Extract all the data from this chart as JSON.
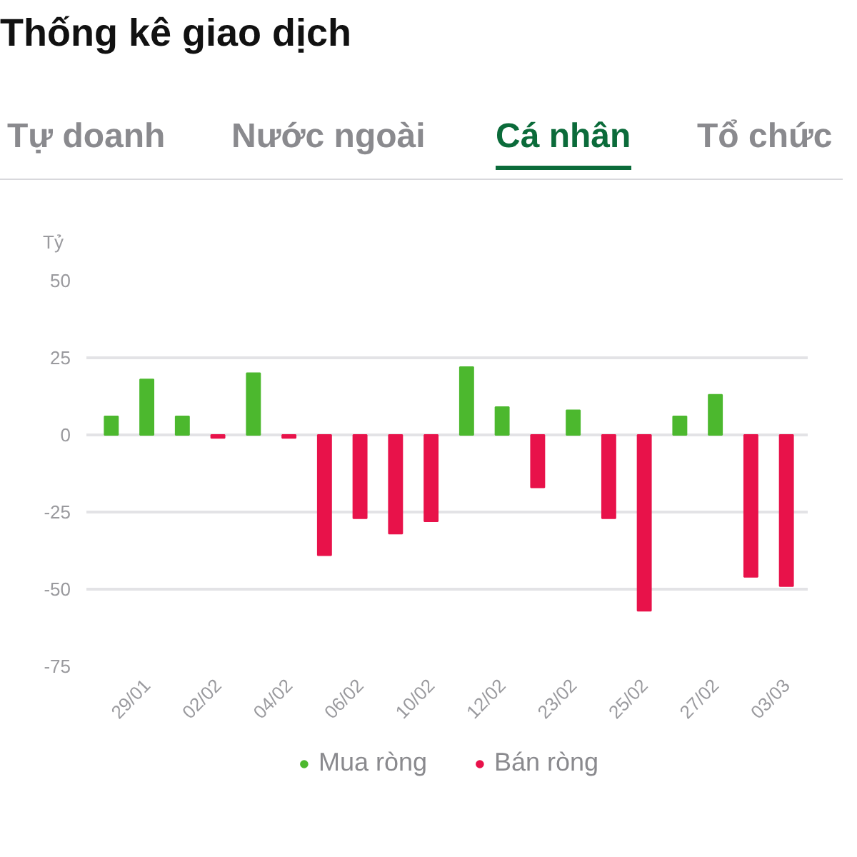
{
  "chart_data": {
    "type": "bar",
    "title": "Thống kê giao dịch",
    "annotations": [
      "Tự doanh",
      "Nước ngoài",
      "Cá nhân",
      "Tổ chức"
    ],
    "ylabel": "Tỷ",
    "categories": [
      null,
      "29/01",
      null,
      "02/02",
      null,
      "04/02",
      null,
      "06/02",
      null,
      "10/02",
      null,
      "12/02",
      null,
      "23/02",
      null,
      "25/02",
      null,
      "27/02",
      null,
      "03/03"
    ],
    "series": [
      {
        "name": "Mua ròng",
        "color": "#4cb82e",
        "values": [
          6,
          18,
          6,
          null,
          20,
          null,
          null,
          null,
          null,
          null,
          22,
          9,
          null,
          8,
          null,
          null,
          6,
          13,
          null,
          null
        ]
      },
      {
        "name": "Bán ròng",
        "color": "#e8124a",
        "values": [
          null,
          null,
          null,
          -1,
          null,
          -1,
          -39,
          -27,
          -32,
          -28,
          null,
          null,
          -17,
          null,
          -27,
          -57,
          null,
          null,
          -46,
          -49
        ]
      }
    ],
    "ylim": [
      -75,
      50
    ],
    "yticks": [
      -75,
      -50,
      -25,
      0,
      25,
      50
    ],
    "grid": "y",
    "legend": "bottom"
  }
}
